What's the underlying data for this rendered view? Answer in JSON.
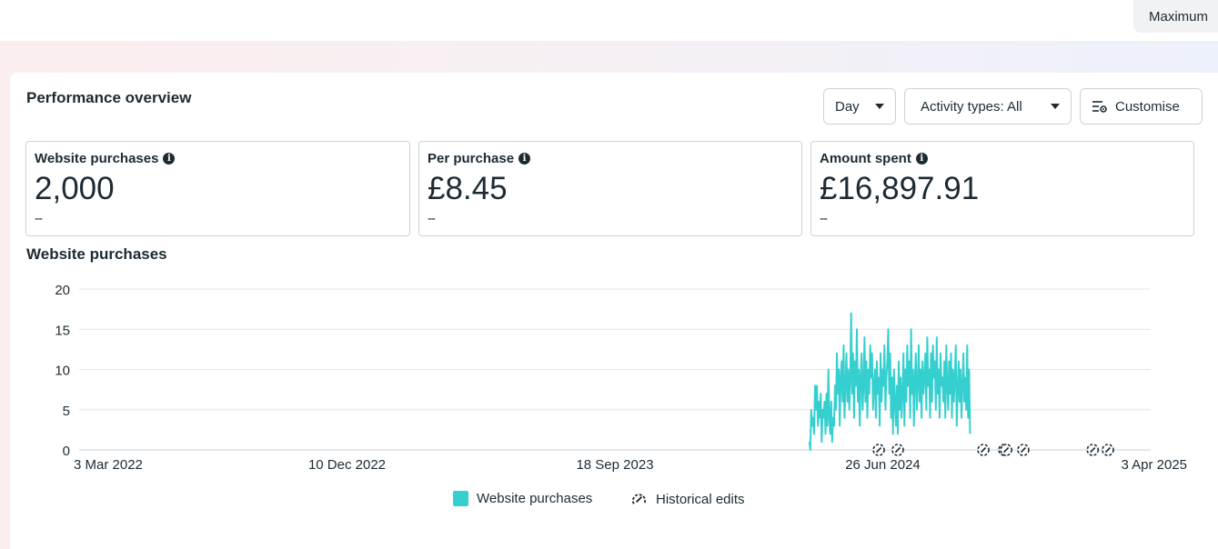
{
  "topbar": {
    "button_label": "Maximum"
  },
  "header": {
    "title": "Performance overview",
    "day_label": "Day",
    "activity_label": "Activity types: All",
    "customise_label": "Customise"
  },
  "metrics": [
    {
      "label": "Website purchases",
      "value": "2,000",
      "delta": "--"
    },
    {
      "label": "Per purchase",
      "value": "£8.45",
      "delta": "--"
    },
    {
      "label": "Amount spent",
      "value": "£16,897.91",
      "delta": "--"
    }
  ],
  "colors": {
    "series": "#36cfcf",
    "grid": "#e4e6eb",
    "text": "#1c2b33"
  },
  "chart_data": {
    "type": "line",
    "title": "Website purchases",
    "x_tick_labels": [
      "3 Mar 2022",
      "10 Dec 2022",
      "18 Sep 2023",
      "26 Jun 2024",
      "3 Apr 2025"
    ],
    "x_range": [
      "2022-03-03",
      "2025-04-03"
    ],
    "y_ticks": [
      0,
      5,
      10,
      15,
      20
    ],
    "ylim": [
      0,
      20
    ],
    "grid": true,
    "legend_position": "bottom",
    "series": [
      {
        "name": "Website purchases",
        "start_date": "2024-04-09",
        "values": [
          1,
          0,
          5,
          3,
          4,
          2,
          8,
          5,
          8,
          3,
          6,
          4,
          7,
          1,
          5,
          4,
          6,
          2,
          7,
          3,
          10,
          4,
          2,
          6,
          1,
          4,
          3,
          8,
          5,
          12,
          7,
          10,
          3,
          9,
          11,
          6,
          13,
          4,
          8,
          12,
          6,
          10,
          5,
          9,
          17,
          7,
          12,
          4,
          11,
          8,
          15,
          6,
          10,
          3,
          9,
          12,
          5,
          8,
          14,
          6,
          11,
          4,
          10,
          7,
          13,
          9,
          12,
          5,
          8,
          10,
          4,
          11,
          7,
          9,
          3,
          12,
          6,
          10,
          8,
          13,
          5,
          9,
          11,
          15,
          7,
          12,
          4,
          9,
          2,
          10,
          6,
          3,
          8,
          2,
          11,
          5,
          9,
          4,
          7,
          12,
          3,
          10,
          6,
          13,
          8,
          11,
          4,
          15,
          7,
          10,
          3,
          9,
          12,
          5,
          8,
          13,
          6,
          10,
          4,
          11,
          7,
          9,
          12,
          5,
          14,
          8,
          10,
          4,
          12,
          6,
          13,
          9,
          11,
          5,
          14,
          7,
          10,
          4,
          12,
          8,
          9,
          6,
          11,
          4,
          13,
          8,
          5,
          11,
          7,
          12,
          4,
          10,
          6,
          9,
          13,
          3,
          7,
          11,
          6,
          10,
          4,
          8,
          12,
          6,
          9,
          5,
          13,
          4,
          10,
          2
        ]
      }
    ],
    "historical_edit_dates": [
      "2024-06-21",
      "2024-07-11",
      "2024-10-09",
      "2024-10-31",
      "2024-11-02",
      "2024-11-20",
      "2025-02-01",
      "2025-02-17"
    ],
    "legend": [
      {
        "label": "Website purchases",
        "kind": "series"
      },
      {
        "label": "Historical edits",
        "kind": "edit-marker"
      }
    ]
  }
}
